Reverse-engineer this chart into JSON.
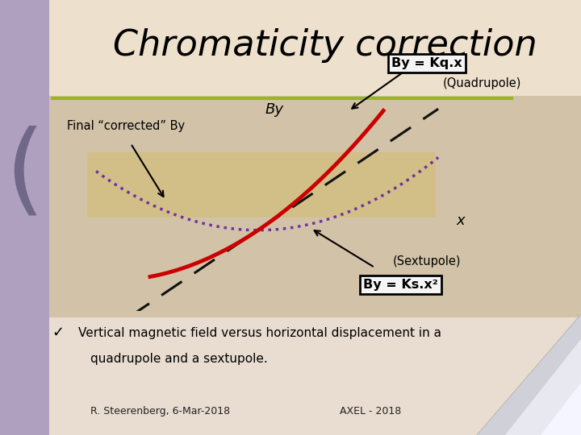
{
  "title": "Chromaticity correction",
  "title_fontsize": 32,
  "title_color": "#000000",
  "bg_top_color": "#e8ddd0",
  "bg_bottom_color": "#d8c8cc",
  "accent_line_color": "#9ab520",
  "left_panel_color": "#b0a0c0",
  "quadrupole_label": "By = Kq.x",
  "quadrupole_sub": "(Quadrupole)",
  "sextupole_label": "By = Ks.x²",
  "sextupole_sub": "(Sextupole)",
  "corrected_label": "Final “corrected” By",
  "x_axis_label": "x",
  "y_axis_label": "By",
  "bullet_text_line1": "Vertical magnetic field versus horizontal displacement in a",
  "bullet_text_line2": "quadrupole and a sextupole.",
  "footer_left": "R. Steerenberg, 6-Mar-2018",
  "footer_right": "AXEL - 2018",
  "dashed_color": "#111111",
  "dotted_color": "#7030a0",
  "red_curve_color": "#cc0000",
  "box_fill": "#f5f5f5",
  "box_edge": "#000000",
  "Kq": 0.9,
  "Ks": 0.18,
  "graph_xlim": [
    -2.8,
    3.2
  ],
  "graph_ylim": [
    -1.8,
    2.8
  ]
}
